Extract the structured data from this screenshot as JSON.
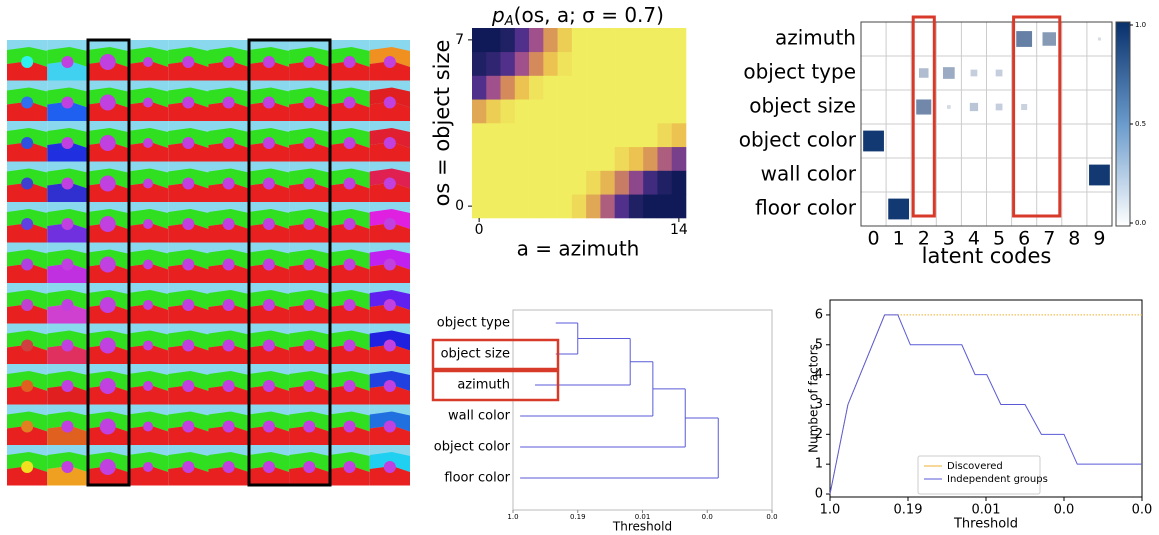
{
  "chart_data": [
    {
      "type": "heatmap",
      "title_parts": [
        "p",
        "A",
        "(os, a; σ = 0.7)"
      ],
      "xlabel": "a = azimuth",
      "ylabel": "os = object size",
      "xlim": [
        -0.5,
        14.5
      ],
      "ylim": [
        -0.5,
        7.5
      ],
      "xticks": [
        0,
        14
      ],
      "yticks": [
        0,
        7
      ],
      "values": [
        [
          0,
          0,
          0,
          0,
          0,
          0,
          0,
          0.1,
          0.3,
          0.55,
          0.8,
          0.95,
          1,
          1,
          1
        ],
        [
          0,
          0,
          0,
          0,
          0,
          0,
          0,
          0,
          0.1,
          0.25,
          0.45,
          0.65,
          0.85,
          0.95,
          1
        ],
        [
          0,
          0,
          0,
          0,
          0,
          0,
          0,
          0,
          0,
          0,
          0.1,
          0.2,
          0.35,
          0.55,
          0.7
        ],
        [
          0,
          0,
          0,
          0,
          0,
          0,
          0,
          0,
          0,
          0,
          0,
          0,
          0,
          0.1,
          0.2
        ],
        [
          0.3,
          0.15,
          0.05,
          0,
          0,
          0,
          0,
          0,
          0,
          0,
          0,
          0,
          0,
          0,
          0
        ],
        [
          0.8,
          0.6,
          0.4,
          0.2,
          0.05,
          0,
          0,
          0,
          0,
          0,
          0,
          0,
          0,
          0,
          0
        ],
        [
          0.95,
          0.9,
          0.8,
          0.6,
          0.4,
          0.2,
          0.05,
          0,
          0,
          0,
          0,
          0,
          0,
          0,
          0
        ],
        [
          1,
          1,
          0.95,
          0.8,
          0.6,
          0.35,
          0.15,
          0,
          0,
          0,
          0,
          0,
          0,
          0,
          0
        ]
      ]
    },
    {
      "type": "hinton",
      "categories": [
        "azimuth",
        "object type",
        "object size",
        "object color",
        "wall color",
        "floor color"
      ],
      "xticks": [
        0,
        1,
        2,
        3,
        4,
        5,
        6,
        7,
        8,
        9
      ],
      "xlabel": "latent codes",
      "color": "#08306b",
      "clim": [
        0,
        1
      ],
      "colorbar_ticks": [
        {
          "value": 0,
          "label": "0.0"
        },
        0.5,
        {
          "value": 1,
          "label": "1.0"
        }
      ],
      "values": [
        [
          0,
          0,
          0,
          0,
          0,
          0,
          0.55,
          0.4,
          0,
          0.02
        ],
        [
          0,
          0,
          0.2,
          0.3,
          0.1,
          0.1,
          0,
          0,
          0,
          0
        ],
        [
          0,
          0,
          0.5,
          0.03,
          0.15,
          0.1,
          0.08,
          0,
          0,
          0
        ],
        [
          0.95,
          0,
          0,
          0,
          0,
          0,
          0,
          0,
          0,
          0
        ],
        [
          0,
          0,
          0,
          0,
          0,
          0,
          0,
          0,
          0,
          0.95
        ],
        [
          0,
          0.95,
          0,
          0,
          0,
          0,
          0,
          0,
          0,
          0
        ]
      ]
    },
    {
      "type": "dendrogram",
      "labels": [
        "object type",
        "object size",
        "azimuth",
        "wall color",
        "object color",
        "floor color"
      ],
      "leaf_heights": [
        0.66,
        0.66,
        0.34,
        0.11,
        0.11,
        0.11
      ],
      "linkage": [
        [
          0,
          1,
          1.0
        ],
        [
          6,
          2,
          1.81
        ],
        [
          7,
          3,
          2.16
        ],
        [
          8,
          4,
          2.66
        ],
        [
          9,
          5,
          3.17
        ]
      ],
      "color": "#5a5ad8",
      "xlabel": "Threshold",
      "xlim": [
        0,
        4
      ],
      "xticks": [
        {
          "value": 0,
          "label": "1.0"
        },
        {
          "value": 1,
          "label": "0.19"
        },
        {
          "value": 2,
          "label": "0.01"
        },
        {
          "value": 3,
          "label": "0.0"
        },
        {
          "value": 4,
          "label": "0.0"
        }
      ]
    },
    {
      "type": "line",
      "xlabel": "Threshold",
      "ylabel": "Number of factors",
      "xlim": [
        0,
        4
      ],
      "ylim": [
        -0.1,
        6.5
      ],
      "xticks": [
        {
          "value": 0,
          "label": "1.0"
        },
        {
          "value": 1,
          "label": "0.19"
        },
        {
          "value": 2,
          "label": "0.01"
        },
        {
          "value": 3,
          "label": "0.0"
        },
        {
          "value": 4,
          "label": "0.0"
        }
      ],
      "yticks": [
        0,
        1,
        2,
        3,
        4,
        5,
        6
      ],
      "legend": "lower center",
      "series": [
        {
          "name": "Discovered",
          "color": "#f0b030",
          "x": [
            0,
            0.23,
            0.7,
            4
          ],
          "values": [
            0,
            3,
            6,
            6
          ]
        },
        {
          "name": "Independent groups",
          "color": "#5a5ad8",
          "x": [
            0,
            0.23,
            0.7,
            0.87,
            1.03,
            1.69,
            1.86,
            2.01,
            2.19,
            2.5,
            2.71,
            3.0,
            3.17,
            4
          ],
          "values": [
            0,
            3,
            6,
            6,
            5,
            5,
            4,
            4,
            3,
            3,
            2,
            2,
            1,
            1
          ]
        }
      ]
    }
  ]
}
